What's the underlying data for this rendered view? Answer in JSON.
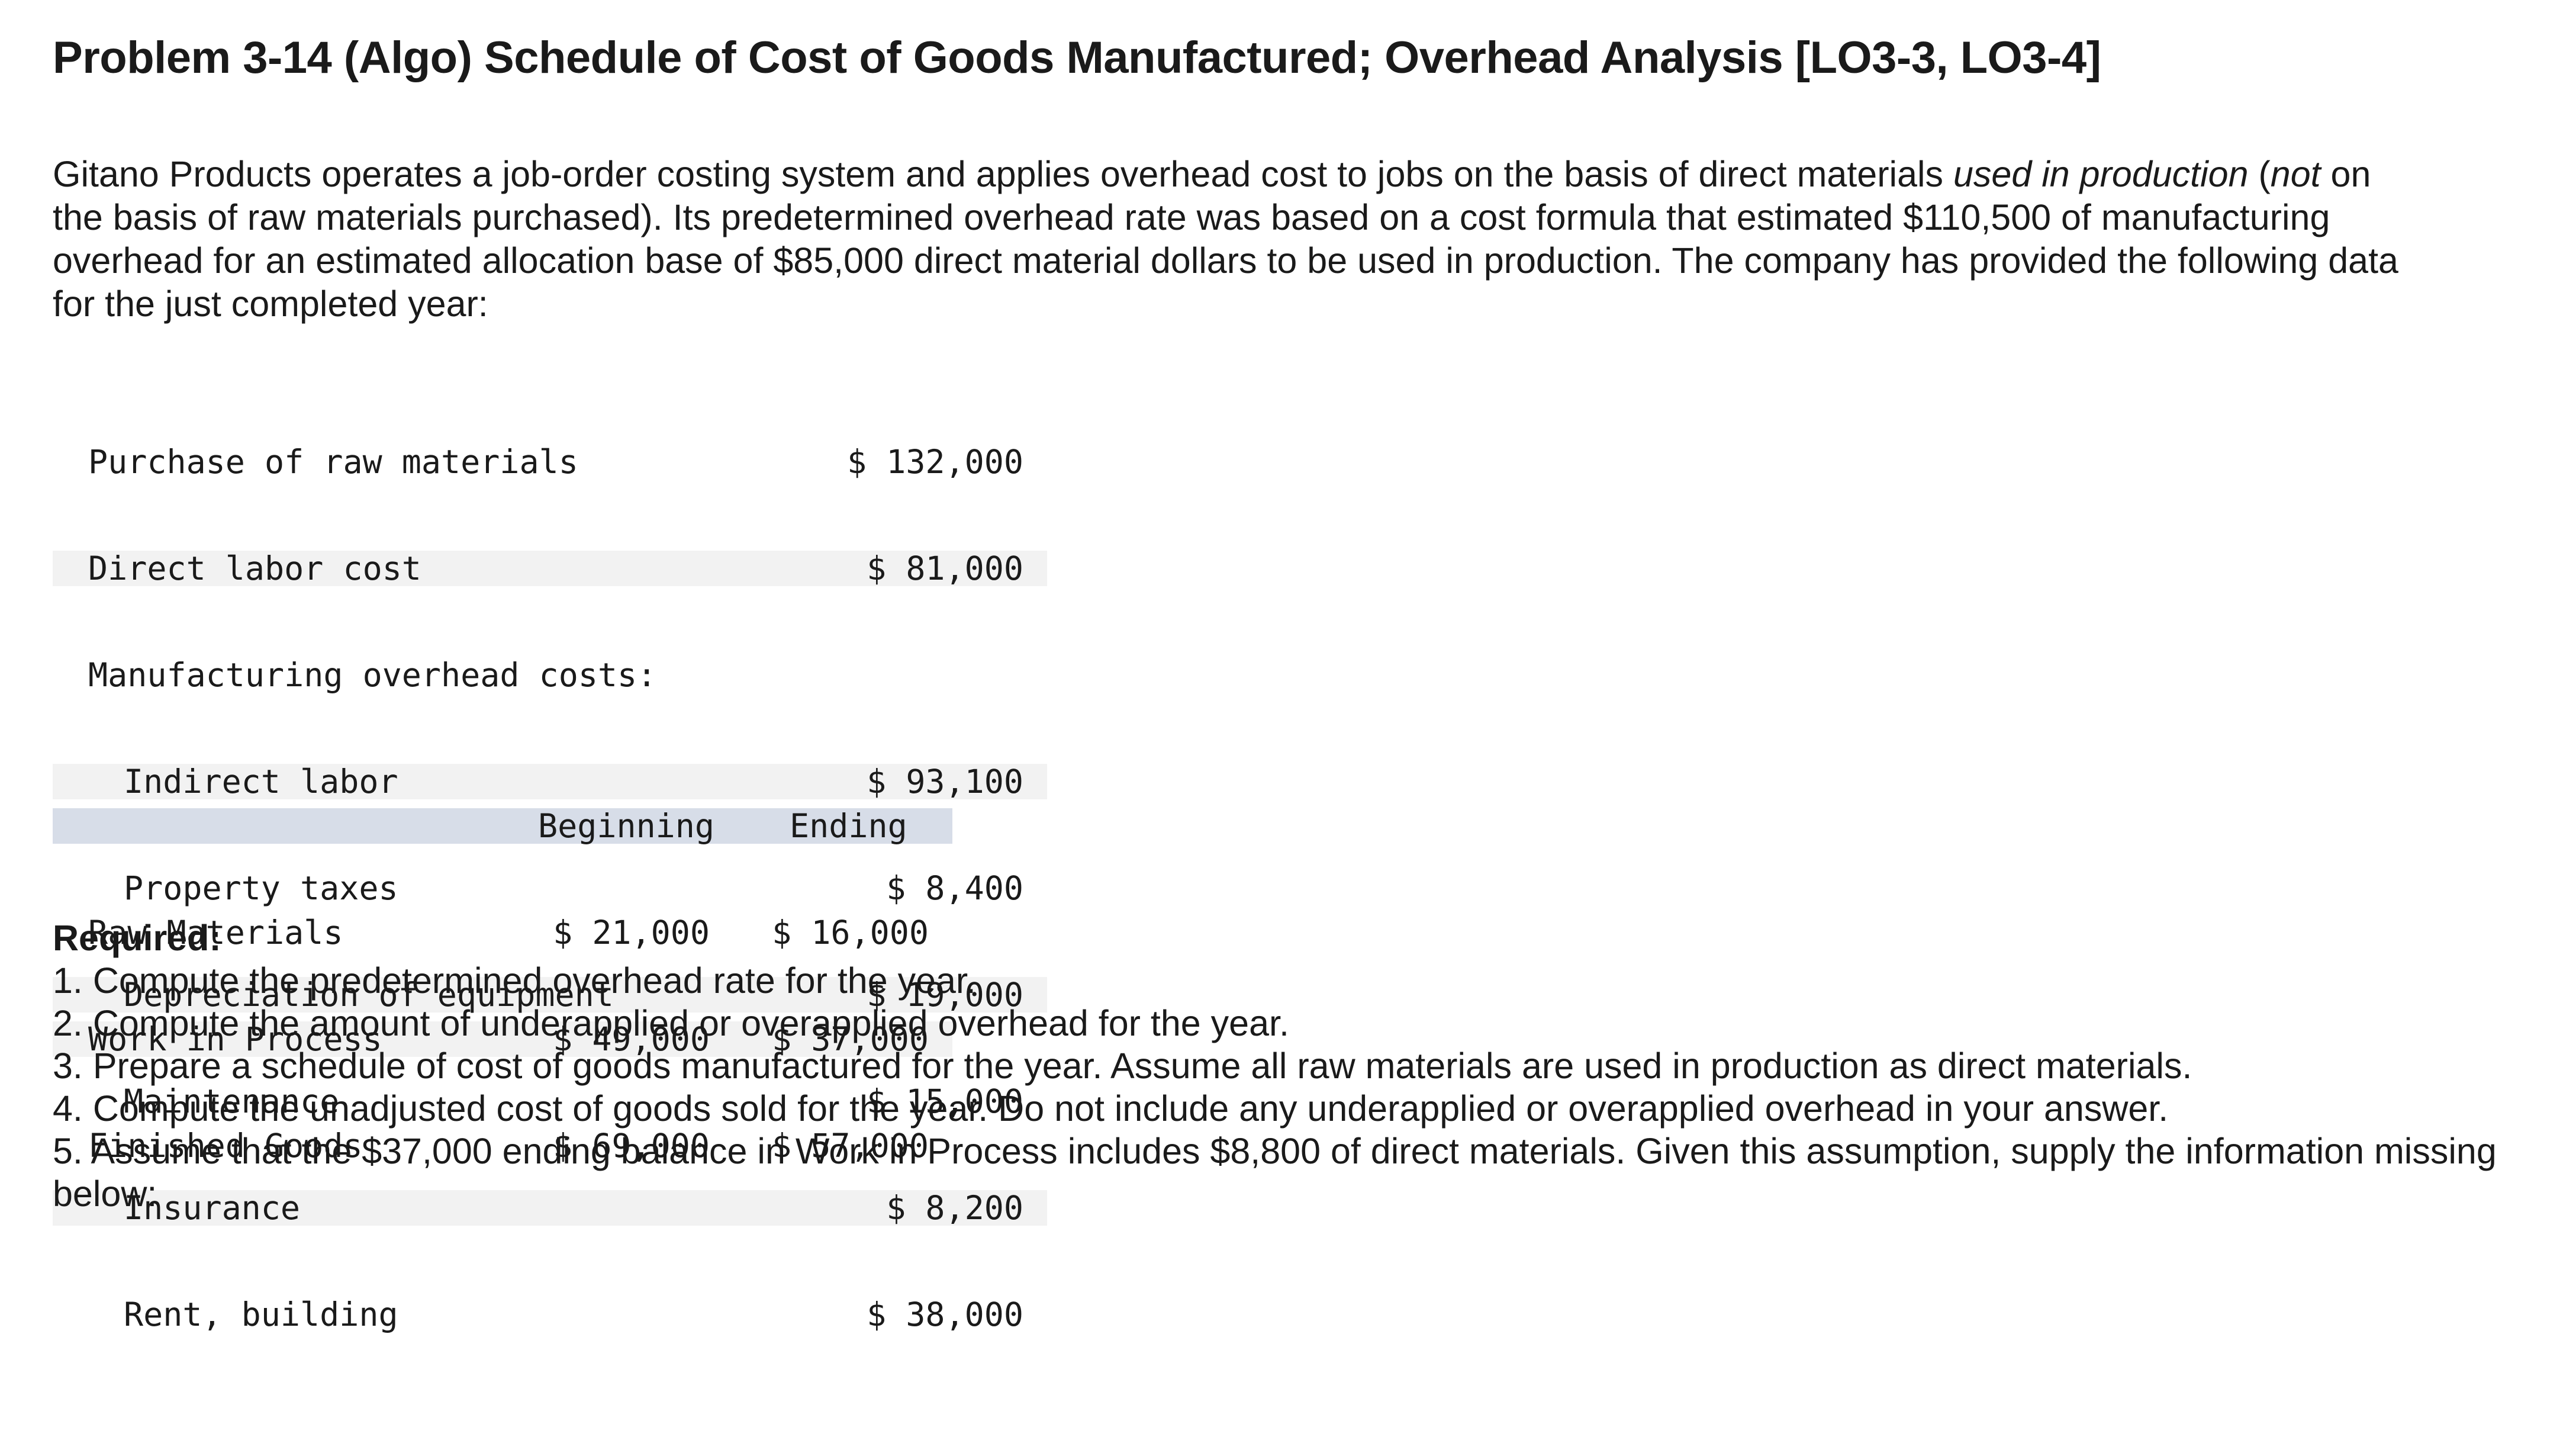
{
  "title": "Problem 3-14 (Algo) Schedule of Cost of Goods Manufactured; Overhead Analysis [LO3-3, LO3-4]",
  "intro": {
    "part1": "Gitano Products operates a job-order costing system and applies overhead cost to jobs on the basis of direct materials ",
    "italic1": "used in production",
    "part2": " (",
    "italic2": "not",
    "part3": " on the basis of raw materials purchased). Its predetermined overhead rate was based on a cost formula that estimated $110,500 of manufacturing overhead for an estimated allocation base of $85,000 direct material dollars to be used in production. The company has provided the following data for the just completed year:"
  },
  "costs": {
    "purchase_label": "Purchase of raw materials",
    "purchase_value": "$ 132,000",
    "labor_label": "Direct labor cost",
    "labor_value": "$ 81,000",
    "overhead_heading": "Manufacturing overhead costs:",
    "overhead_items": [
      {
        "label": "Indirect labor",
        "value": "$ 93,100"
      },
      {
        "label": "Property taxes",
        "value": "$ 8,400"
      },
      {
        "label": "Depreciation of equipment",
        "value": "$ 19,000"
      },
      {
        "label": "Maintenance",
        "value": "$ 15,000"
      },
      {
        "label": "Insurance",
        "value": "$ 8,200"
      },
      {
        "label": "Rent, building",
        "value": "$ 38,000"
      }
    ]
  },
  "inventories": {
    "header_beginning": "Beginning",
    "header_ending": "Ending",
    "rows": [
      {
        "label": "Raw Materials",
        "beginning": "$ 21,000",
        "ending": "$ 16,000"
      },
      {
        "label": "Work in Process",
        "beginning": "$ 49,000",
        "ending": "$ 37,000"
      },
      {
        "label": "Finished Goods",
        "beginning": "$ 69,000",
        "ending": "$ 57,000"
      }
    ]
  },
  "required": {
    "heading": "Required:",
    "items": [
      "1. Compute the predetermined overhead rate for the year.",
      "2. Compute the amount of underapplied or overapplied overhead for the year.",
      "3. Prepare a schedule of cost of goods manufactured for the year. Assume all raw materials are used in production as direct materials.",
      "4. Compute the unadjusted cost of goods sold for the year. Do not include any underapplied or overapplied overhead in your answer.",
      "5. Assume that the $37,000 ending balance in Work in Process includes $8,800 of direct materials. Given this assumption, supply the information missing below:"
    ]
  }
}
